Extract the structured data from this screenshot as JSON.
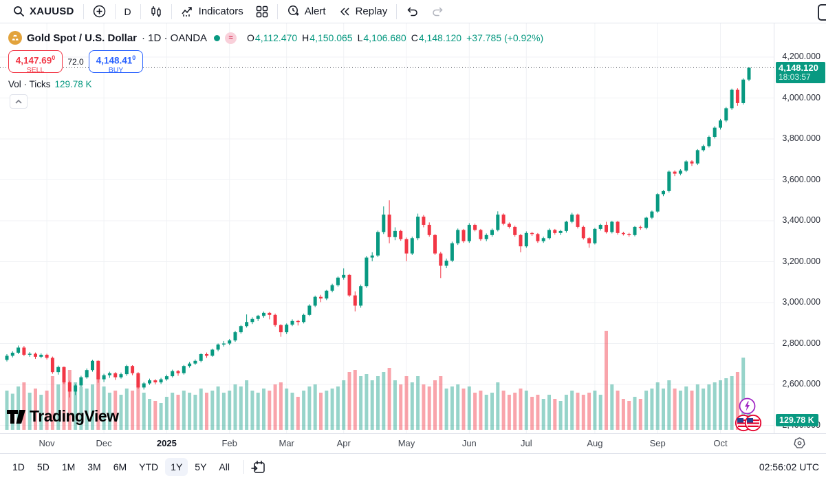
{
  "toolbar": {
    "symbol": "XAUUSD",
    "interval": "D",
    "indicators_label": "Indicators",
    "alert_label": "Alert",
    "replay_label": "Replay"
  },
  "header": {
    "title": "Gold Spot / U.S. Dollar",
    "meta": "· 1D · OANDA",
    "badge": "≈",
    "o_label": "O",
    "o": "4,112.470",
    "h_label": "H",
    "h": "4,150.065",
    "l_label": "L",
    "l": "4,106.680",
    "c_label": "C",
    "c": "4,148.120",
    "change": "+37.785 (+0.92%)"
  },
  "order_panel": {
    "sell_price": "4,147.69",
    "sell_sup": "0",
    "sell_label": "SELL",
    "spread": "72.0",
    "buy_price": "4,148.41",
    "buy_sup": "0",
    "buy_label": "BUY"
  },
  "volume_row": {
    "label": "Vol · Ticks",
    "value": "129.78 K"
  },
  "watermark": "TradingView",
  "price_axis": {
    "ticks": [
      {
        "label": "4,200.000",
        "value": 4200
      },
      {
        "label": "4,000.000",
        "value": 4000
      },
      {
        "label": "3,800.000",
        "value": 3800
      },
      {
        "label": "3,600.000",
        "value": 3600
      },
      {
        "label": "3,400.000",
        "value": 3400
      },
      {
        "label": "3,200.000",
        "value": 3200
      },
      {
        "label": "3,000.000",
        "value": 3000
      },
      {
        "label": "2,800.000",
        "value": 2800
      },
      {
        "label": "2,600.000",
        "value": 2600
      },
      {
        "label": "2,400.000",
        "value": 2400
      }
    ],
    "last_price_label": "4,148.120",
    "countdown": "18:03:57",
    "volume_tag": "129.78 K"
  },
  "footer": {
    "ranges": [
      "1D",
      "5D",
      "1M",
      "3M",
      "6M",
      "YTD",
      "1Y",
      "5Y",
      "All"
    ],
    "active": "1Y",
    "clock": "02:56:02 UTC"
  },
  "colors": {
    "up": "#089981",
    "down": "#f23645",
    "volume_up": "rgba(8,153,129,0.42)",
    "volume_down": "rgba(242,54,69,0.45)",
    "buy": "#2962ff",
    "sell": "#f23645",
    "grid": "#f0f2f5",
    "last_line": "#50535e",
    "tag_bg": "#089981"
  },
  "chart_data": {
    "type": "candlestick",
    "symbol": "XAUUSD",
    "timeframe": "1D",
    "range_shown": "Nov 2024 – Oct 2025",
    "title": "Gold Spot / U.S. Dollar · 1D · OANDA",
    "y_axis": {
      "min": 2400,
      "max": 4240,
      "tick_step": 200
    },
    "legend_position": "none",
    "grid": true,
    "last_price": 4148.12,
    "months": [
      {
        "label": "Nov",
        "i": 7
      },
      {
        "label": "Dec",
        "i": 17
      },
      {
        "label": "2025",
        "i": 28,
        "bold": true
      },
      {
        "label": "Feb",
        "i": 39
      },
      {
        "label": "Mar",
        "i": 49
      },
      {
        "label": "Apr",
        "i": 59
      },
      {
        "label": "May",
        "i": 70
      },
      {
        "label": "Jun",
        "i": 81
      },
      {
        "label": "Jul",
        "i": 91
      },
      {
        "label": "Aug",
        "i": 103
      },
      {
        "label": "Sep",
        "i": 114
      },
      {
        "label": "Oct",
        "i": 125
      }
    ],
    "candles_format": [
      "open",
      "high",
      "low",
      "close",
      "volume_k_ticks"
    ],
    "note": "OHLC and volume approximated from chart pixels; each bar spans ~2 trading days",
    "candles": [
      [
        2720,
        2748,
        2712,
        2740,
        190
      ],
      [
        2740,
        2762,
        2732,
        2755,
        175
      ],
      [
        2755,
        2790,
        2748,
        2780,
        210
      ],
      [
        2780,
        2788,
        2738,
        2745,
        230
      ],
      [
        2745,
        2758,
        2735,
        2750,
        180
      ],
      [
        2750,
        2756,
        2725,
        2735,
        200
      ],
      [
        2735,
        2752,
        2728,
        2745,
        170
      ],
      [
        2745,
        2750,
        2722,
        2730,
        190
      ],
      [
        2730,
        2736,
        2652,
        2660,
        260
      ],
      [
        2660,
        2692,
        2648,
        2685,
        220
      ],
      [
        2685,
        2688,
        2602,
        2610,
        270
      ],
      [
        2610,
        2618,
        2536,
        2565,
        290
      ],
      [
        2565,
        2602,
        2548,
        2595,
        230
      ],
      [
        2595,
        2642,
        2588,
        2635,
        210
      ],
      [
        2635,
        2678,
        2628,
        2670,
        200
      ],
      [
        2670,
        2720,
        2662,
        2715,
        220
      ],
      [
        2715,
        2718,
        2608,
        2625,
        280
      ],
      [
        2625,
        2652,
        2612,
        2645,
        210
      ],
      [
        2645,
        2662,
        2632,
        2655,
        180
      ],
      [
        2655,
        2660,
        2622,
        2635,
        190
      ],
      [
        2635,
        2658,
        2628,
        2650,
        170
      ],
      [
        2650,
        2696,
        2642,
        2690,
        200
      ],
      [
        2690,
        2694,
        2645,
        2655,
        190
      ],
      [
        2655,
        2660,
        2578,
        2585,
        260
      ],
      [
        2585,
        2612,
        2575,
        2605,
        180
      ],
      [
        2605,
        2628,
        2598,
        2620,
        150
      ],
      [
        2620,
        2626,
        2600,
        2610,
        140
      ],
      [
        2610,
        2632,
        2602,
        2625,
        130
      ],
      [
        2625,
        2648,
        2618,
        2640,
        160
      ],
      [
        2640,
        2672,
        2634,
        2665,
        180
      ],
      [
        2665,
        2670,
        2642,
        2655,
        170
      ],
      [
        2655,
        2695,
        2648,
        2690,
        190
      ],
      [
        2690,
        2710,
        2682,
        2702,
        180
      ],
      [
        2702,
        2722,
        2695,
        2715,
        170
      ],
      [
        2715,
        2752,
        2708,
        2748,
        200
      ],
      [
        2748,
        2756,
        2730,
        2740,
        180
      ],
      [
        2740,
        2775,
        2735,
        2770,
        190
      ],
      [
        2770,
        2800,
        2762,
        2795,
        210
      ],
      [
        2795,
        2812,
        2785,
        2800,
        180
      ],
      [
        2800,
        2822,
        2792,
        2815,
        190
      ],
      [
        2815,
        2862,
        2808,
        2855,
        220
      ],
      [
        2855,
        2890,
        2848,
        2885,
        210
      ],
      [
        2885,
        2942,
        2878,
        2905,
        240
      ],
      [
        2905,
        2928,
        2895,
        2920,
        190
      ],
      [
        2920,
        2940,
        2910,
        2935,
        180
      ],
      [
        2935,
        2956,
        2926,
        2950,
        200
      ],
      [
        2950,
        2954,
        2918,
        2940,
        190
      ],
      [
        2940,
        2946,
        2882,
        2890,
        220
      ],
      [
        2890,
        2895,
        2833,
        2855,
        230
      ],
      [
        2855,
        2898,
        2846,
        2892,
        200
      ],
      [
        2892,
        2918,
        2885,
        2910,
        180
      ],
      [
        2910,
        2916,
        2888,
        2905,
        160
      ],
      [
        2905,
        2946,
        2898,
        2940,
        190
      ],
      [
        2940,
        2992,
        2934,
        2985,
        210
      ],
      [
        2985,
        3034,
        2978,
        3028,
        220
      ],
      [
        3028,
        3038,
        3002,
        3020,
        180
      ],
      [
        3020,
        3062,
        3012,
        3058,
        190
      ],
      [
        3058,
        3092,
        3050,
        3085,
        200
      ],
      [
        3085,
        3128,
        3078,
        3122,
        210
      ],
      [
        3122,
        3167,
        3112,
        3135,
        240
      ],
      [
        3135,
        3140,
        3028,
        3035,
        280
      ],
      [
        3035,
        3055,
        2957,
        2985,
        290
      ],
      [
        2985,
        3088,
        2975,
        3080,
        260
      ],
      [
        3080,
        3228,
        3072,
        3220,
        270
      ],
      [
        3220,
        3246,
        3202,
        3230,
        240
      ],
      [
        3230,
        3352,
        3222,
        3345,
        260
      ],
      [
        3345,
        3470,
        3335,
        3430,
        280
      ],
      [
        3430,
        3500,
        3290,
        3320,
        300
      ],
      [
        3320,
        3368,
        3305,
        3350,
        240
      ],
      [
        3350,
        3356,
        3302,
        3310,
        220
      ],
      [
        3310,
        3318,
        3202,
        3240,
        260
      ],
      [
        3240,
        3322,
        3232,
        3315,
        230
      ],
      [
        3315,
        3435,
        3305,
        3420,
        260
      ],
      [
        3420,
        3428,
        3368,
        3380,
        220
      ],
      [
        3380,
        3392,
        3322,
        3330,
        210
      ],
      [
        3330,
        3336,
        3232,
        3240,
        240
      ],
      [
        3240,
        3248,
        3120,
        3180,
        260
      ],
      [
        3180,
        3215,
        3168,
        3205,
        200
      ],
      [
        3205,
        3298,
        3198,
        3290,
        210
      ],
      [
        3290,
        3362,
        3282,
        3355,
        220
      ],
      [
        3355,
        3360,
        3292,
        3300,
        200
      ],
      [
        3300,
        3388,
        3292,
        3380,
        210
      ],
      [
        3380,
        3386,
        3348,
        3355,
        180
      ],
      [
        3355,
        3360,
        3302,
        3310,
        190
      ],
      [
        3310,
        3338,
        3300,
        3330,
        170
      ],
      [
        3330,
        3362,
        3322,
        3355,
        180
      ],
      [
        3355,
        3446,
        3348,
        3430,
        230
      ],
      [
        3430,
        3436,
        3378,
        3385,
        190
      ],
      [
        3385,
        3392,
        3362,
        3370,
        170
      ],
      [
        3370,
        3376,
        3322,
        3330,
        180
      ],
      [
        3330,
        3336,
        3246,
        3275,
        200
      ],
      [
        3275,
        3348,
        3268,
        3340,
        190
      ],
      [
        3340,
        3346,
        3326,
        3335,
        160
      ],
      [
        3335,
        3340,
        3292,
        3300,
        170
      ],
      [
        3300,
        3322,
        3292,
        3315,
        150
      ],
      [
        3315,
        3362,
        3308,
        3355,
        170
      ],
      [
        3355,
        3360,
        3332,
        3340,
        150
      ],
      [
        3340,
        3356,
        3330,
        3350,
        140
      ],
      [
        3350,
        3400,
        3342,
        3395,
        170
      ],
      [
        3395,
        3439,
        3388,
        3430,
        190
      ],
      [
        3430,
        3435,
        3362,
        3370,
        180
      ],
      [
        3370,
        3376,
        3308,
        3315,
        170
      ],
      [
        3315,
        3320,
        3268,
        3290,
        180
      ],
      [
        3290,
        3365,
        3284,
        3360,
        190
      ],
      [
        3360,
        3385,
        3352,
        3380,
        170
      ],
      [
        3380,
        3395,
        3338,
        3345,
        480
      ],
      [
        3345,
        3400,
        3338,
        3395,
        220
      ],
      [
        3395,
        3400,
        3332,
        3340,
        190
      ],
      [
        3340,
        3346,
        3328,
        3335,
        150
      ],
      [
        3335,
        3341,
        3322,
        3330,
        140
      ],
      [
        3330,
        3374,
        3324,
        3370,
        160
      ],
      [
        3370,
        3376,
        3356,
        3365,
        150
      ],
      [
        3365,
        3420,
        3358,
        3415,
        190
      ],
      [
        3415,
        3450,
        3408,
        3445,
        200
      ],
      [
        3445,
        3535,
        3438,
        3530,
        230
      ],
      [
        3530,
        3550,
        3520,
        3545,
        200
      ],
      [
        3545,
        3646,
        3538,
        3640,
        240
      ],
      [
        3640,
        3646,
        3618,
        3630,
        200
      ],
      [
        3630,
        3652,
        3622,
        3645,
        190
      ],
      [
        3645,
        3696,
        3638,
        3690,
        210
      ],
      [
        3690,
        3696,
        3668,
        3680,
        190
      ],
      [
        3680,
        3750,
        3672,
        3745,
        220
      ],
      [
        3745,
        3772,
        3738,
        3765,
        200
      ],
      [
        3765,
        3816,
        3758,
        3810,
        220
      ],
      [
        3810,
        3862,
        3802,
        3855,
        230
      ],
      [
        3855,
        3898,
        3846,
        3890,
        240
      ],
      [
        3890,
        3956,
        3882,
        3950,
        250
      ],
      [
        3950,
        4046,
        3942,
        4040,
        260
      ],
      [
        4040,
        4048,
        3962,
        3975,
        280
      ],
      [
        3975,
        4096,
        3968,
        4090,
        350
      ],
      [
        4090,
        4150,
        4082,
        4148,
        130
      ]
    ]
  }
}
